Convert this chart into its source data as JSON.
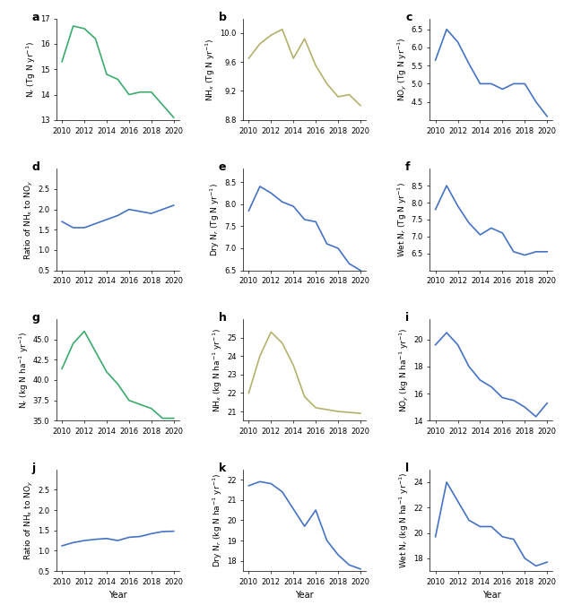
{
  "years": [
    2010,
    2011,
    2012,
    2013,
    2014,
    2015,
    2016,
    2017,
    2018,
    2019,
    2020
  ],
  "panel_a": {
    "label": "a",
    "ylabel": "N$_r$ (Tg N yr$^{-1}$)",
    "color": "#3aaa6e",
    "values": [
      15.3,
      16.7,
      16.6,
      16.2,
      14.8,
      14.6,
      14.0,
      14.1,
      14.1,
      13.6,
      13.1
    ],
    "ylim": [
      13,
      17
    ]
  },
  "panel_b": {
    "label": "b",
    "ylabel": "NH$_x$ (Tg N yr$^{-1}$)",
    "color": "#b5b06a",
    "values": [
      9.65,
      9.85,
      9.97,
      10.05,
      9.65,
      9.92,
      9.55,
      9.3,
      9.12,
      9.15,
      9.0
    ],
    "ylim": [
      8.8,
      10.2
    ]
  },
  "panel_c": {
    "label": "c",
    "ylabel": "NO$_y$ (Tg N yr$^{-1}$)",
    "color": "#4472c4",
    "values": [
      5.65,
      6.5,
      6.15,
      5.55,
      5.0,
      5.0,
      4.85,
      5.0,
      5.0,
      4.5,
      4.1
    ],
    "ylim": [
      4.0,
      6.8
    ]
  },
  "panel_d": {
    "label": "d",
    "ylabel": "Ratio of NH$_x$ to NO$_y$",
    "color": "#4472c4",
    "values": [
      1.7,
      1.55,
      1.55,
      1.65,
      1.75,
      1.85,
      2.0,
      1.95,
      1.9,
      2.0,
      2.1
    ],
    "ylim": [
      0.5,
      3.0
    ]
  },
  "panel_e": {
    "label": "e",
    "ylabel": "Dry N$_r$ (Tg N yr$^{-1}$)",
    "color": "#4472c4",
    "values": [
      7.85,
      8.4,
      8.25,
      8.05,
      7.95,
      7.65,
      7.6,
      7.1,
      7.0,
      6.65,
      6.5
    ],
    "ylim": [
      6.5,
      8.8
    ]
  },
  "panel_f": {
    "label": "f",
    "ylabel": "Wet N$_r$ (Tg N yr$^{-1}$)",
    "color": "#4472c4",
    "values": [
      7.8,
      8.5,
      7.9,
      7.4,
      7.05,
      7.25,
      7.1,
      6.55,
      6.45,
      6.55,
      6.55
    ],
    "ylim": [
      6.0,
      9.0
    ]
  },
  "panel_g": {
    "label": "g",
    "ylabel": "N$_r$ (kg N ha$^{-1}$ yr$^{-1}$)",
    "color": "#3aaa6e",
    "values": [
      41.4,
      44.5,
      46.0,
      43.5,
      41.0,
      39.5,
      37.5,
      37.0,
      36.5,
      35.3,
      35.3
    ],
    "ylim": [
      35.0,
      47.5
    ]
  },
  "panel_h": {
    "label": "h",
    "ylabel": "NH$_x$ (kg N ha$^{-1}$ yr$^{-1}$)",
    "color": "#b5b06a",
    "values": [
      22.0,
      24.0,
      25.3,
      24.7,
      23.5,
      21.8,
      21.2,
      21.1,
      21.0,
      20.95,
      20.9
    ],
    "ylim": [
      20.5,
      26.0
    ]
  },
  "panel_i": {
    "label": "i",
    "ylabel": "NO$_y$ (kg N ha$^{-1}$ yr$^{-1}$)",
    "color": "#4472c4",
    "values": [
      19.6,
      20.5,
      19.6,
      18.0,
      17.0,
      16.5,
      15.7,
      15.5,
      15.0,
      14.3,
      15.3
    ],
    "ylim": [
      14.0,
      21.5
    ]
  },
  "panel_j": {
    "label": "j",
    "ylabel": "Ratio of NH$_x$ to NO$_y$",
    "color": "#4472c4",
    "values": [
      1.12,
      1.2,
      1.25,
      1.28,
      1.3,
      1.25,
      1.33,
      1.35,
      1.42,
      1.47,
      1.48
    ],
    "ylim": [
      0.5,
      3.0
    ]
  },
  "panel_k": {
    "label": "k",
    "ylabel": "Dry N$_r$ (kg N ha$^{-1}$ yr$^{-1}$)",
    "color": "#4472c4",
    "values": [
      21.7,
      21.9,
      21.8,
      21.4,
      20.55,
      19.7,
      20.5,
      19.0,
      18.3,
      17.8,
      17.6
    ],
    "ylim": [
      17.5,
      22.5
    ]
  },
  "panel_l": {
    "label": "l",
    "ylabel": "Wet N$_r$ (kg N ha$^{-1}$ yr$^{-1}$)",
    "color": "#4472c4",
    "values": [
      19.7,
      24.0,
      22.5,
      21.0,
      20.5,
      20.5,
      19.7,
      19.5,
      18.0,
      17.4,
      17.7
    ],
    "ylim": [
      17.0,
      25.0
    ]
  },
  "yticks_a": [
    13,
    14,
    15,
    16,
    17
  ],
  "yticks_b": [
    8.8,
    9.2,
    9.6,
    10.0
  ],
  "yticks_c": [
    4.5,
    5.0,
    5.5,
    6.0,
    6.5
  ],
  "yticks_d": [
    0.5,
    1.0,
    1.5,
    2.0,
    2.5
  ],
  "yticks_e": [
    6.5,
    7.0,
    7.5,
    8.0,
    8.5
  ],
  "yticks_f": [
    6.5,
    7.0,
    7.5,
    8.0,
    8.5
  ],
  "yticks_g": [
    35.0,
    37.5,
    40.0,
    42.5,
    45.0
  ],
  "yticks_h": [
    21,
    22,
    23,
    24,
    25
  ],
  "yticks_i": [
    14,
    16,
    18,
    20
  ],
  "yticks_j": [
    0.5,
    1.0,
    1.5,
    2.0,
    2.5
  ],
  "yticks_k": [
    18,
    19,
    20,
    21,
    22
  ],
  "yticks_l": [
    18,
    20,
    22,
    24
  ],
  "xticks": [
    2010,
    2012,
    2014,
    2016,
    2018,
    2020
  ],
  "xlabel": "Year"
}
